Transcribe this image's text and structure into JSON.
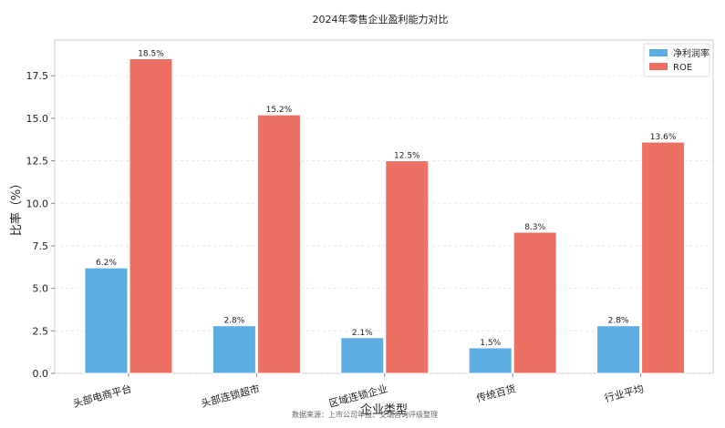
{
  "chart_data": {
    "type": "bar",
    "title": "2024年零售企业盈利能力对比",
    "xlabel": "企业类型",
    "ylabel": "比率（%）",
    "categories": [
      "头部电商平台",
      "头部连锁超市",
      "区域连锁企业",
      "传统百货",
      "行业平均"
    ],
    "series": [
      {
        "name": "净利润率",
        "color": "#5DADE2",
        "values": [
          6.2,
          2.8,
          2.1,
          1.5,
          2.8
        ]
      },
      {
        "name": "ROE",
        "color": "#EC7063",
        "values": [
          18.5,
          15.2,
          12.5,
          8.3,
          13.6
        ]
      }
    ],
    "ylim": [
      0,
      19.6
    ],
    "yticks": [
      0.0,
      2.5,
      5.0,
      7.5,
      10.0,
      12.5,
      15.0,
      17.5
    ],
    "grid": true,
    "legend_position": "top-right",
    "value_suffix": "%"
  },
  "footer": {
    "source": "数据来源：上市公司年报、艾瑞咨询评级整理"
  }
}
